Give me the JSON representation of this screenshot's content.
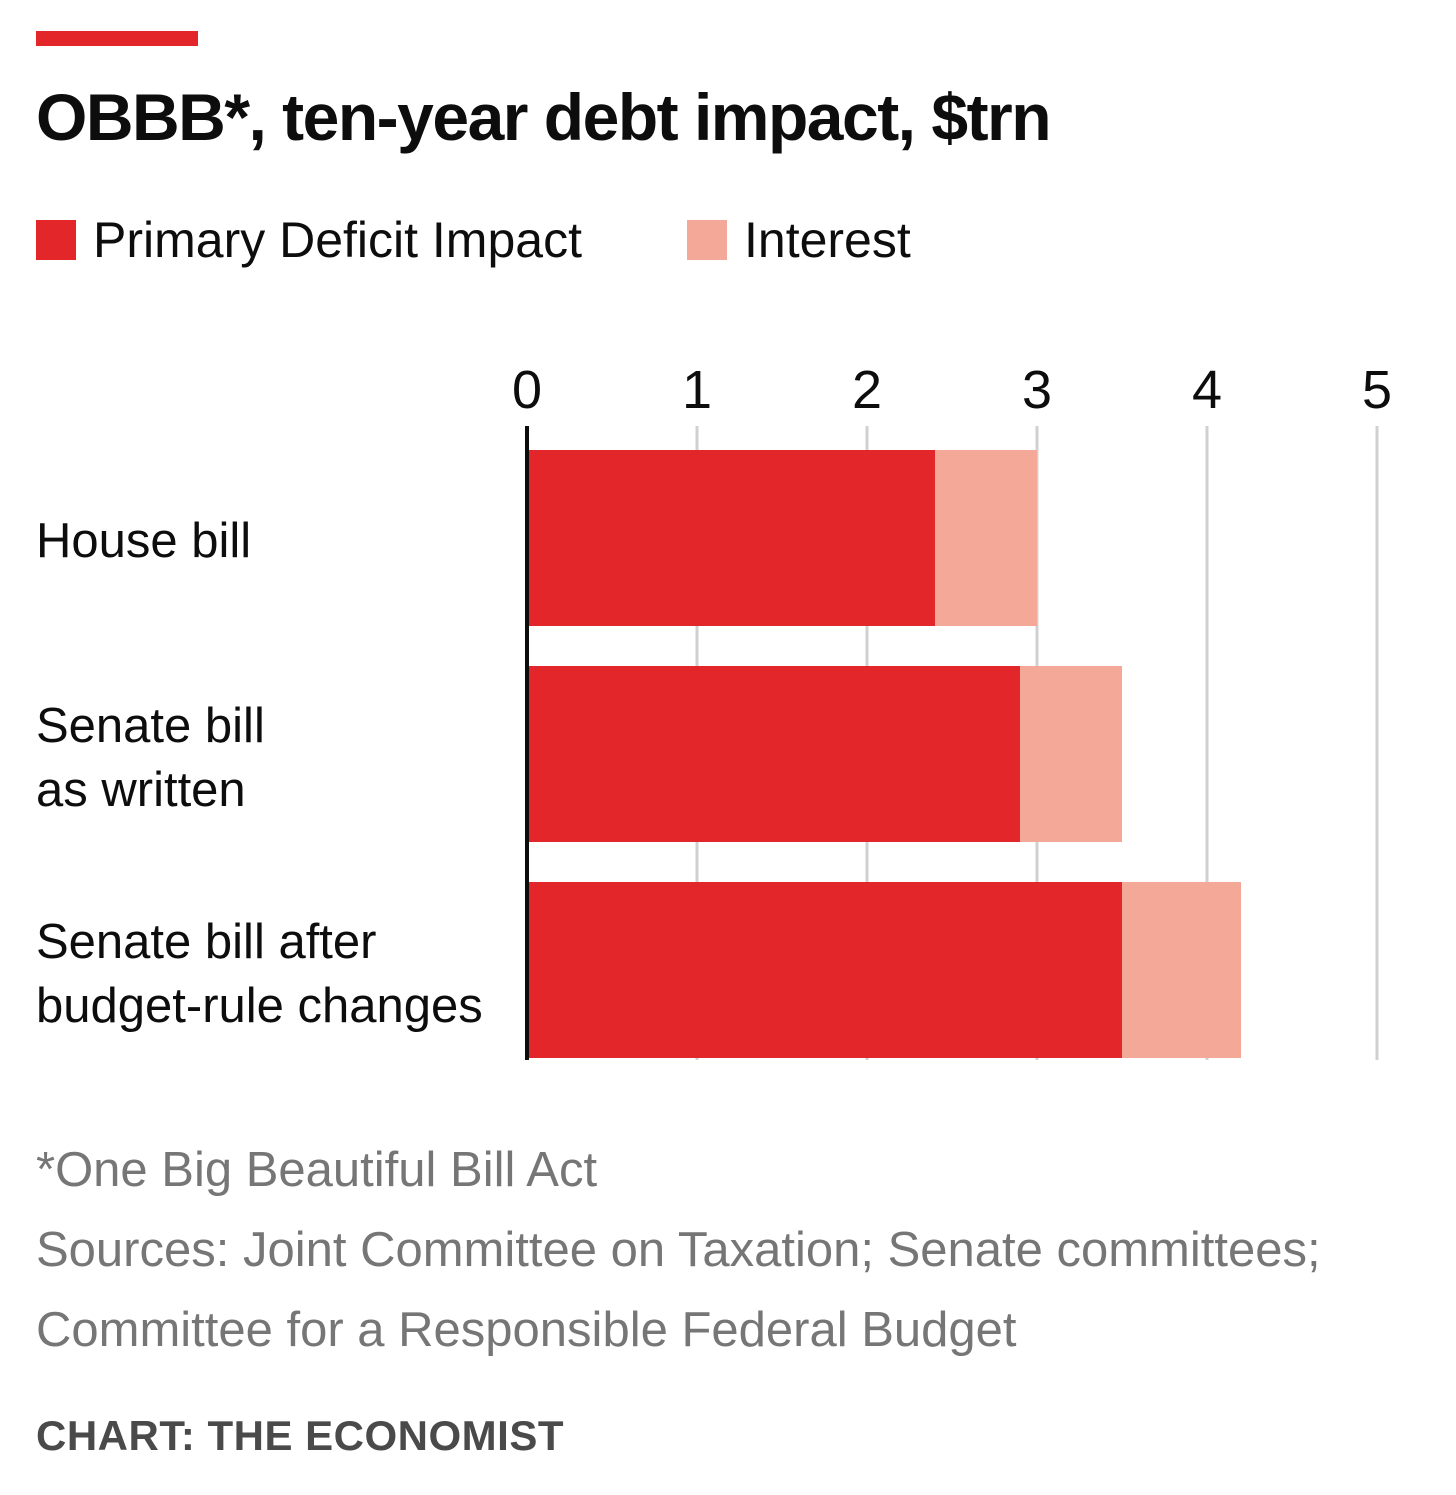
{
  "chart_data": {
    "type": "bar",
    "orientation": "horizontal",
    "stacked": true,
    "title": "OBBB*, ten-year debt impact, $trn",
    "categories": [
      "House bill",
      "Senate bill as written",
      "Senate bill after budget-rule changes"
    ],
    "category_lines": [
      [
        "House bill"
      ],
      [
        "Senate bill",
        "as written"
      ],
      [
        "Senate bill after",
        "budget-rule changes"
      ]
    ],
    "series": [
      {
        "name": "Primary Deficit Impact",
        "color": "#e2262a",
        "values": [
          2.4,
          2.9,
          3.5
        ]
      },
      {
        "name": "Interest",
        "color": "#f4a898",
        "values": [
          0.6,
          0.6,
          0.7
        ]
      }
    ],
    "xlim": [
      0,
      5
    ],
    "xticks": [
      "0",
      "1",
      "2",
      "3",
      "4",
      "5"
    ],
    "grid": true,
    "legend_position": "top-left"
  },
  "notes": {
    "footnote": "*One Big Beautiful Bill Act",
    "sources_line1": "Sources: Joint Committee on Taxation; Senate committees;",
    "sources_line2": "Committee for a Responsible Federal Budget",
    "credit": "CHART: THE ECONOMIST"
  },
  "colors": {
    "accent": "#e2262a",
    "grid": "#d0d0d0",
    "axis": "#0d0d0d",
    "note": "#767676"
  }
}
